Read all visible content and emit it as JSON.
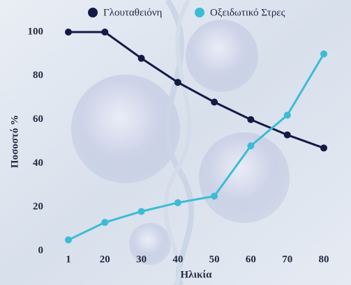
{
  "chart_data": {
    "type": "line",
    "categories": [
      "1",
      "20",
      "30",
      "40",
      "50",
      "60",
      "70",
      "80"
    ],
    "series": [
      {
        "name": "Γλουταθειόνη",
        "color": "#141a46",
        "values": [
          100,
          100,
          88,
          77,
          68,
          60,
          53,
          47
        ]
      },
      {
        "name": "Οξειδωτικό Στρες",
        "color": "#3cbcd4",
        "values": [
          5,
          13,
          18,
          22,
          25,
          48,
          62,
          90
        ]
      }
    ],
    "x_label": "Ηλικία",
    "y_label": "Ποσοστό %",
    "ylim": [
      0,
      100
    ],
    "yticks": [
      0,
      20,
      40,
      60,
      80,
      100
    ],
    "legend": "top"
  }
}
